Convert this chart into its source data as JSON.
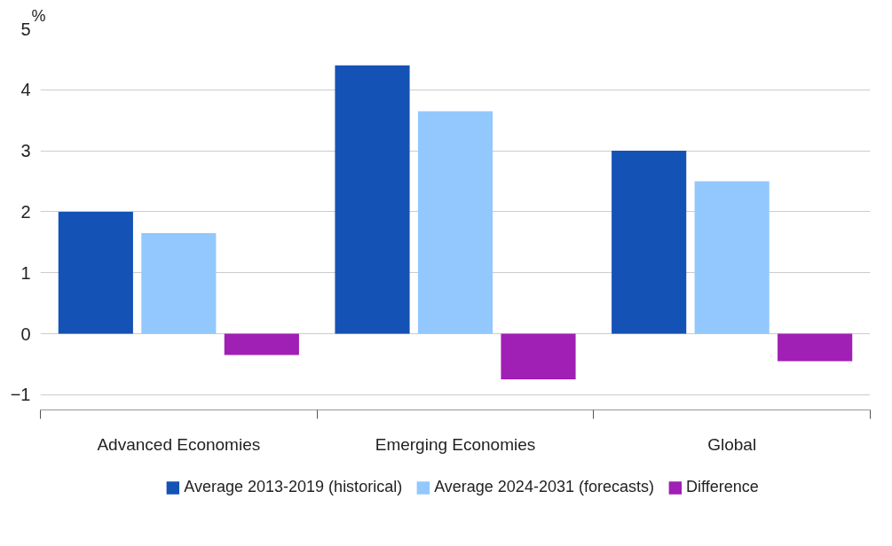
{
  "chart_data": {
    "type": "bar",
    "ylabel": "%",
    "categories": [
      "Advanced Economies",
      "Emerging Economies",
      "Global"
    ],
    "series": [
      {
        "name": "Average 2013-2019 (historical)",
        "color": "#1552b5",
        "values": [
          2.0,
          4.4,
          3.0
        ]
      },
      {
        "name": "Average 2024-2031 (forecasts)",
        "color": "#93c8fe",
        "values": [
          1.65,
          3.65,
          2.5
        ]
      },
      {
        "name": "Difference",
        "color": "#a01fb4",
        "values": [
          -0.35,
          -0.75,
          -0.45
        ]
      }
    ],
    "ylim": [
      -1.25,
      5
    ],
    "yticks": [
      -1,
      0,
      1,
      2,
      3,
      4,
      5
    ],
    "grid": "y",
    "legend": "bottom"
  }
}
